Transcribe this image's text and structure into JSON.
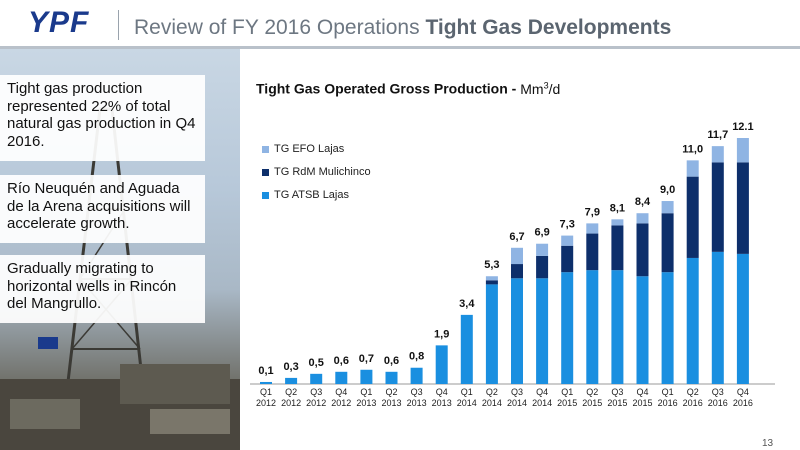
{
  "header": {
    "logo": "YPF",
    "title_prefix": "Review of FY 2016 Operations ",
    "title_bold": "Tight Gas Developments"
  },
  "sidebar": {
    "box1": "Tight gas production represented 22% of total natural gas production in Q4 2016.",
    "box2": "Río Neuquén and Aguada de la Arena acquisitions will accelerate growth.",
    "box3": "Gradually migrating to horizontal wells in Rincón del Mangrullo."
  },
  "chart_data": {
    "type": "bar",
    "stacked": true,
    "title": "Tight Gas Operated Gross Production - ",
    "unit": "Mm3/d",
    "categories": [
      [
        "Q1",
        "2012"
      ],
      [
        "Q2",
        "2012"
      ],
      [
        "Q3",
        "2012"
      ],
      [
        "Q4",
        "2012"
      ],
      [
        "Q1",
        "2013"
      ],
      [
        "Q2",
        "2013"
      ],
      [
        "Q3",
        "2013"
      ],
      [
        "Q4",
        "2013"
      ],
      [
        "Q1",
        "2014"
      ],
      [
        "Q2",
        "2014"
      ],
      [
        "Q3",
        "2014"
      ],
      [
        "Q4",
        "2014"
      ],
      [
        "Q1",
        "2015"
      ],
      [
        "Q2",
        "2015"
      ],
      [
        "Q3",
        "2015"
      ],
      [
        "Q4",
        "2015"
      ],
      [
        "Q1",
        "2016"
      ],
      [
        "Q2",
        "2016"
      ],
      [
        "Q3",
        "2016"
      ],
      [
        "Q4",
        "2016"
      ]
    ],
    "series": [
      {
        "name": "TG ATSB Lajas",
        "color": "#1a8fe0",
        "values": [
          0.1,
          0.3,
          0.5,
          0.6,
          0.7,
          0.6,
          0.8,
          1.9,
          3.4,
          4.9,
          5.2,
          5.2,
          5.5,
          5.6,
          5.6,
          5.3,
          5.5,
          6.2,
          6.5,
          6.4
        ]
      },
      {
        "name": "TG RdM Mulichinco",
        "color": "#0d2f6b",
        "values": [
          0,
          0,
          0,
          0,
          0,
          0,
          0,
          0,
          0,
          0.2,
          0.7,
          1.1,
          1.3,
          1.8,
          2.2,
          2.6,
          2.9,
          4.0,
          4.4,
          4.5
        ]
      },
      {
        "name": "TG EFO Lajas",
        "color": "#8fb4e3",
        "values": [
          0,
          0,
          0,
          0,
          0,
          0,
          0,
          0,
          0,
          0.2,
          0.8,
          0.6,
          0.5,
          0.5,
          0.3,
          0.5,
          0.6,
          0.8,
          0.8,
          1.2
        ]
      }
    ],
    "totals": [
      "0,1",
      "0,3",
      "0,5",
      "0,6",
      "0,7",
      "0,6",
      "0,8",
      "1,9",
      "3,4",
      "5,3",
      "6,7",
      "6,9",
      "7,3",
      "7,9",
      "8,1",
      "8,4",
      "9,0",
      "11,0",
      "11,7",
      "12.1"
    ],
    "ylim": [
      0,
      12.1
    ],
    "legend_order": [
      "TG EFO Lajas",
      "TG RdM Mulichinco",
      "TG ATSB Lajas"
    ],
    "legend_position": "top-left",
    "grid": false
  },
  "page_number": "13"
}
